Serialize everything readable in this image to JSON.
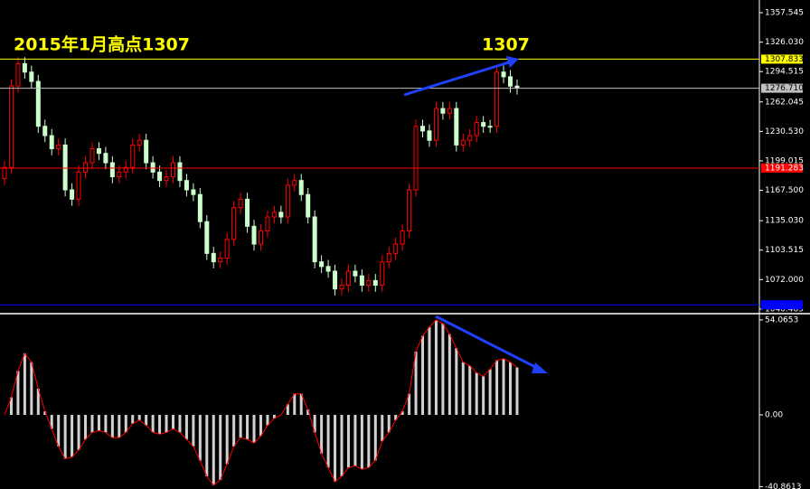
{
  "chart_data": [
    {
      "type": "candlestick",
      "annotations": [
        "2015年1月高点1307",
        "1307"
      ],
      "open": [
        1180,
        1192,
        1279,
        1303,
        1294,
        1284,
        1236,
        1226,
        1212,
        1216,
        1168,
        1158,
        1187,
        1197,
        1212,
        1207,
        1197,
        1182,
        1187,
        1192,
        1216,
        1221,
        1197,
        1187,
        1178,
        1182,
        1197,
        1178,
        1168,
        1163,
        1134,
        1100,
        1091,
        1095,
        1115,
        1149,
        1158,
        1129,
        1110,
        1124,
        1139,
        1144,
        1139,
        1173,
        1178,
        1163,
        1139,
        1091,
        1086,
        1081,
        1062,
        1066,
        1081,
        1076,
        1066,
        1071,
        1066,
        1091,
        1100,
        1110,
        1124,
        1168,
        1236,
        1231,
        1221,
        1255,
        1250,
        1255,
        1216,
        1221,
        1226,
        1240,
        1236,
        1236,
        1294,
        1289,
        1279
      ],
      "high": [
        1199,
        1286,
        1310,
        1310,
        1301,
        1291,
        1243,
        1233,
        1223,
        1223,
        1175,
        1194,
        1204,
        1219,
        1219,
        1214,
        1204,
        1194,
        1199,
        1223,
        1228,
        1228,
        1204,
        1194,
        1189,
        1204,
        1204,
        1185,
        1175,
        1170,
        1141,
        1107,
        1102,
        1122,
        1156,
        1165,
        1165,
        1136,
        1131,
        1146,
        1151,
        1151,
        1180,
        1185,
        1185,
        1170,
        1146,
        1098,
        1093,
        1088,
        1073,
        1088,
        1088,
        1083,
        1078,
        1078,
        1098,
        1107,
        1117,
        1131,
        1175,
        1243,
        1243,
        1238,
        1262,
        1262,
        1262,
        1262,
        1228,
        1233,
        1247,
        1247,
        1243,
        1301,
        1301,
        1296,
        1286
      ],
      "low": [
        1173,
        1185,
        1272,
        1287,
        1277,
        1229,
        1219,
        1205,
        1205,
        1161,
        1151,
        1151,
        1180,
        1190,
        1200,
        1190,
        1175,
        1175,
        1180,
        1185,
        1209,
        1190,
        1180,
        1171,
        1171,
        1175,
        1171,
        1161,
        1156,
        1127,
        1093,
        1084,
        1084,
        1088,
        1108,
        1142,
        1122,
        1103,
        1103,
        1117,
        1132,
        1132,
        1132,
        1166,
        1156,
        1132,
        1084,
        1079,
        1074,
        1055,
        1055,
        1059,
        1069,
        1059,
        1059,
        1059,
        1059,
        1084,
        1093,
        1103,
        1117,
        1161,
        1224,
        1214,
        1214,
        1243,
        1243,
        1209,
        1209,
        1214,
        1219,
        1229,
        1229,
        1229,
        1282,
        1272,
        1270
      ],
      "close": [
        1192,
        1279,
        1303,
        1294,
        1284,
        1236,
        1226,
        1212,
        1216,
        1168,
        1158,
        1187,
        1197,
        1212,
        1207,
        1197,
        1182,
        1187,
        1192,
        1216,
        1221,
        1197,
        1187,
        1178,
        1182,
        1197,
        1178,
        1168,
        1163,
        1134,
        1100,
        1091,
        1095,
        1115,
        1149,
        1158,
        1129,
        1110,
        1124,
        1139,
        1144,
        1139,
        1173,
        1178,
        1163,
        1139,
        1091,
        1086,
        1081,
        1062,
        1066,
        1081,
        1076,
        1066,
        1071,
        1066,
        1091,
        1100,
        1110,
        1124,
        1168,
        1236,
        1231,
        1221,
        1255,
        1250,
        1255,
        1216,
        1221,
        1226,
        1240,
        1236,
        1236,
        1294,
        1289,
        1279,
        1277
      ],
      "up_color": "#ff0000",
      "down_color": "#ccffcc",
      "ylim": [
        1037.5,
        1371.1
      ],
      "yticks": [
        1357.545,
        {
          "value": 1326.03,
          "label": "1326.030"
        },
        1294.515,
        1262.045,
        {
          "value": 1230.53,
          "label": "1230.530"
        },
        1199.015,
        {
          "value": 1167.5,
          "label": "1167.500"
        },
        {
          "value": 1135.03,
          "label": "1135.030"
        },
        1103.515,
        {
          "value": 1072,
          "label": "1072.000"
        },
        1040.485
      ],
      "levels": [
        {
          "value": 1307.833,
          "color": "#ffff00"
        },
        {
          "value": 1276.71,
          "label": "1276.710",
          "color": "#c0c0c0"
        },
        {
          "value": 1191.283,
          "color": "#ff0000"
        },
        {
          "value": 1045,
          "color": "#0000ff"
        }
      ]
    },
    {
      "type": "bar",
      "values": [
        0,
        10,
        25,
        35,
        30,
        15,
        2,
        -8,
        -18,
        -25,
        -24,
        -20,
        -14,
        -10,
        -9,
        -10,
        -13,
        -13,
        -10,
        -5,
        -3,
        -6,
        -10,
        -11,
        -10,
        -8,
        -10,
        -14,
        -18,
        -26,
        -35,
        -40,
        -37,
        -28,
        -18,
        -13,
        -14,
        -16,
        -12,
        -6,
        -2,
        0,
        6,
        12,
        12,
        3,
        -10,
        -22,
        -30,
        -38,
        -35,
        -30,
        -29,
        -31,
        -30,
        -26,
        -15,
        -10,
        -3,
        2,
        12,
        36,
        45,
        50,
        54,
        52,
        46,
        38,
        30,
        28,
        24,
        22,
        26,
        31,
        32,
        30,
        27
      ],
      "color": "#d0d0d0",
      "line_color": "#ff0000",
      "ylim": [
        -42.2,
        56.6
      ],
      "yticks": [
        54.0653,
        {
          "value": 0,
          "label": "0.00"
        },
        -40.8613
      ]
    }
  ]
}
